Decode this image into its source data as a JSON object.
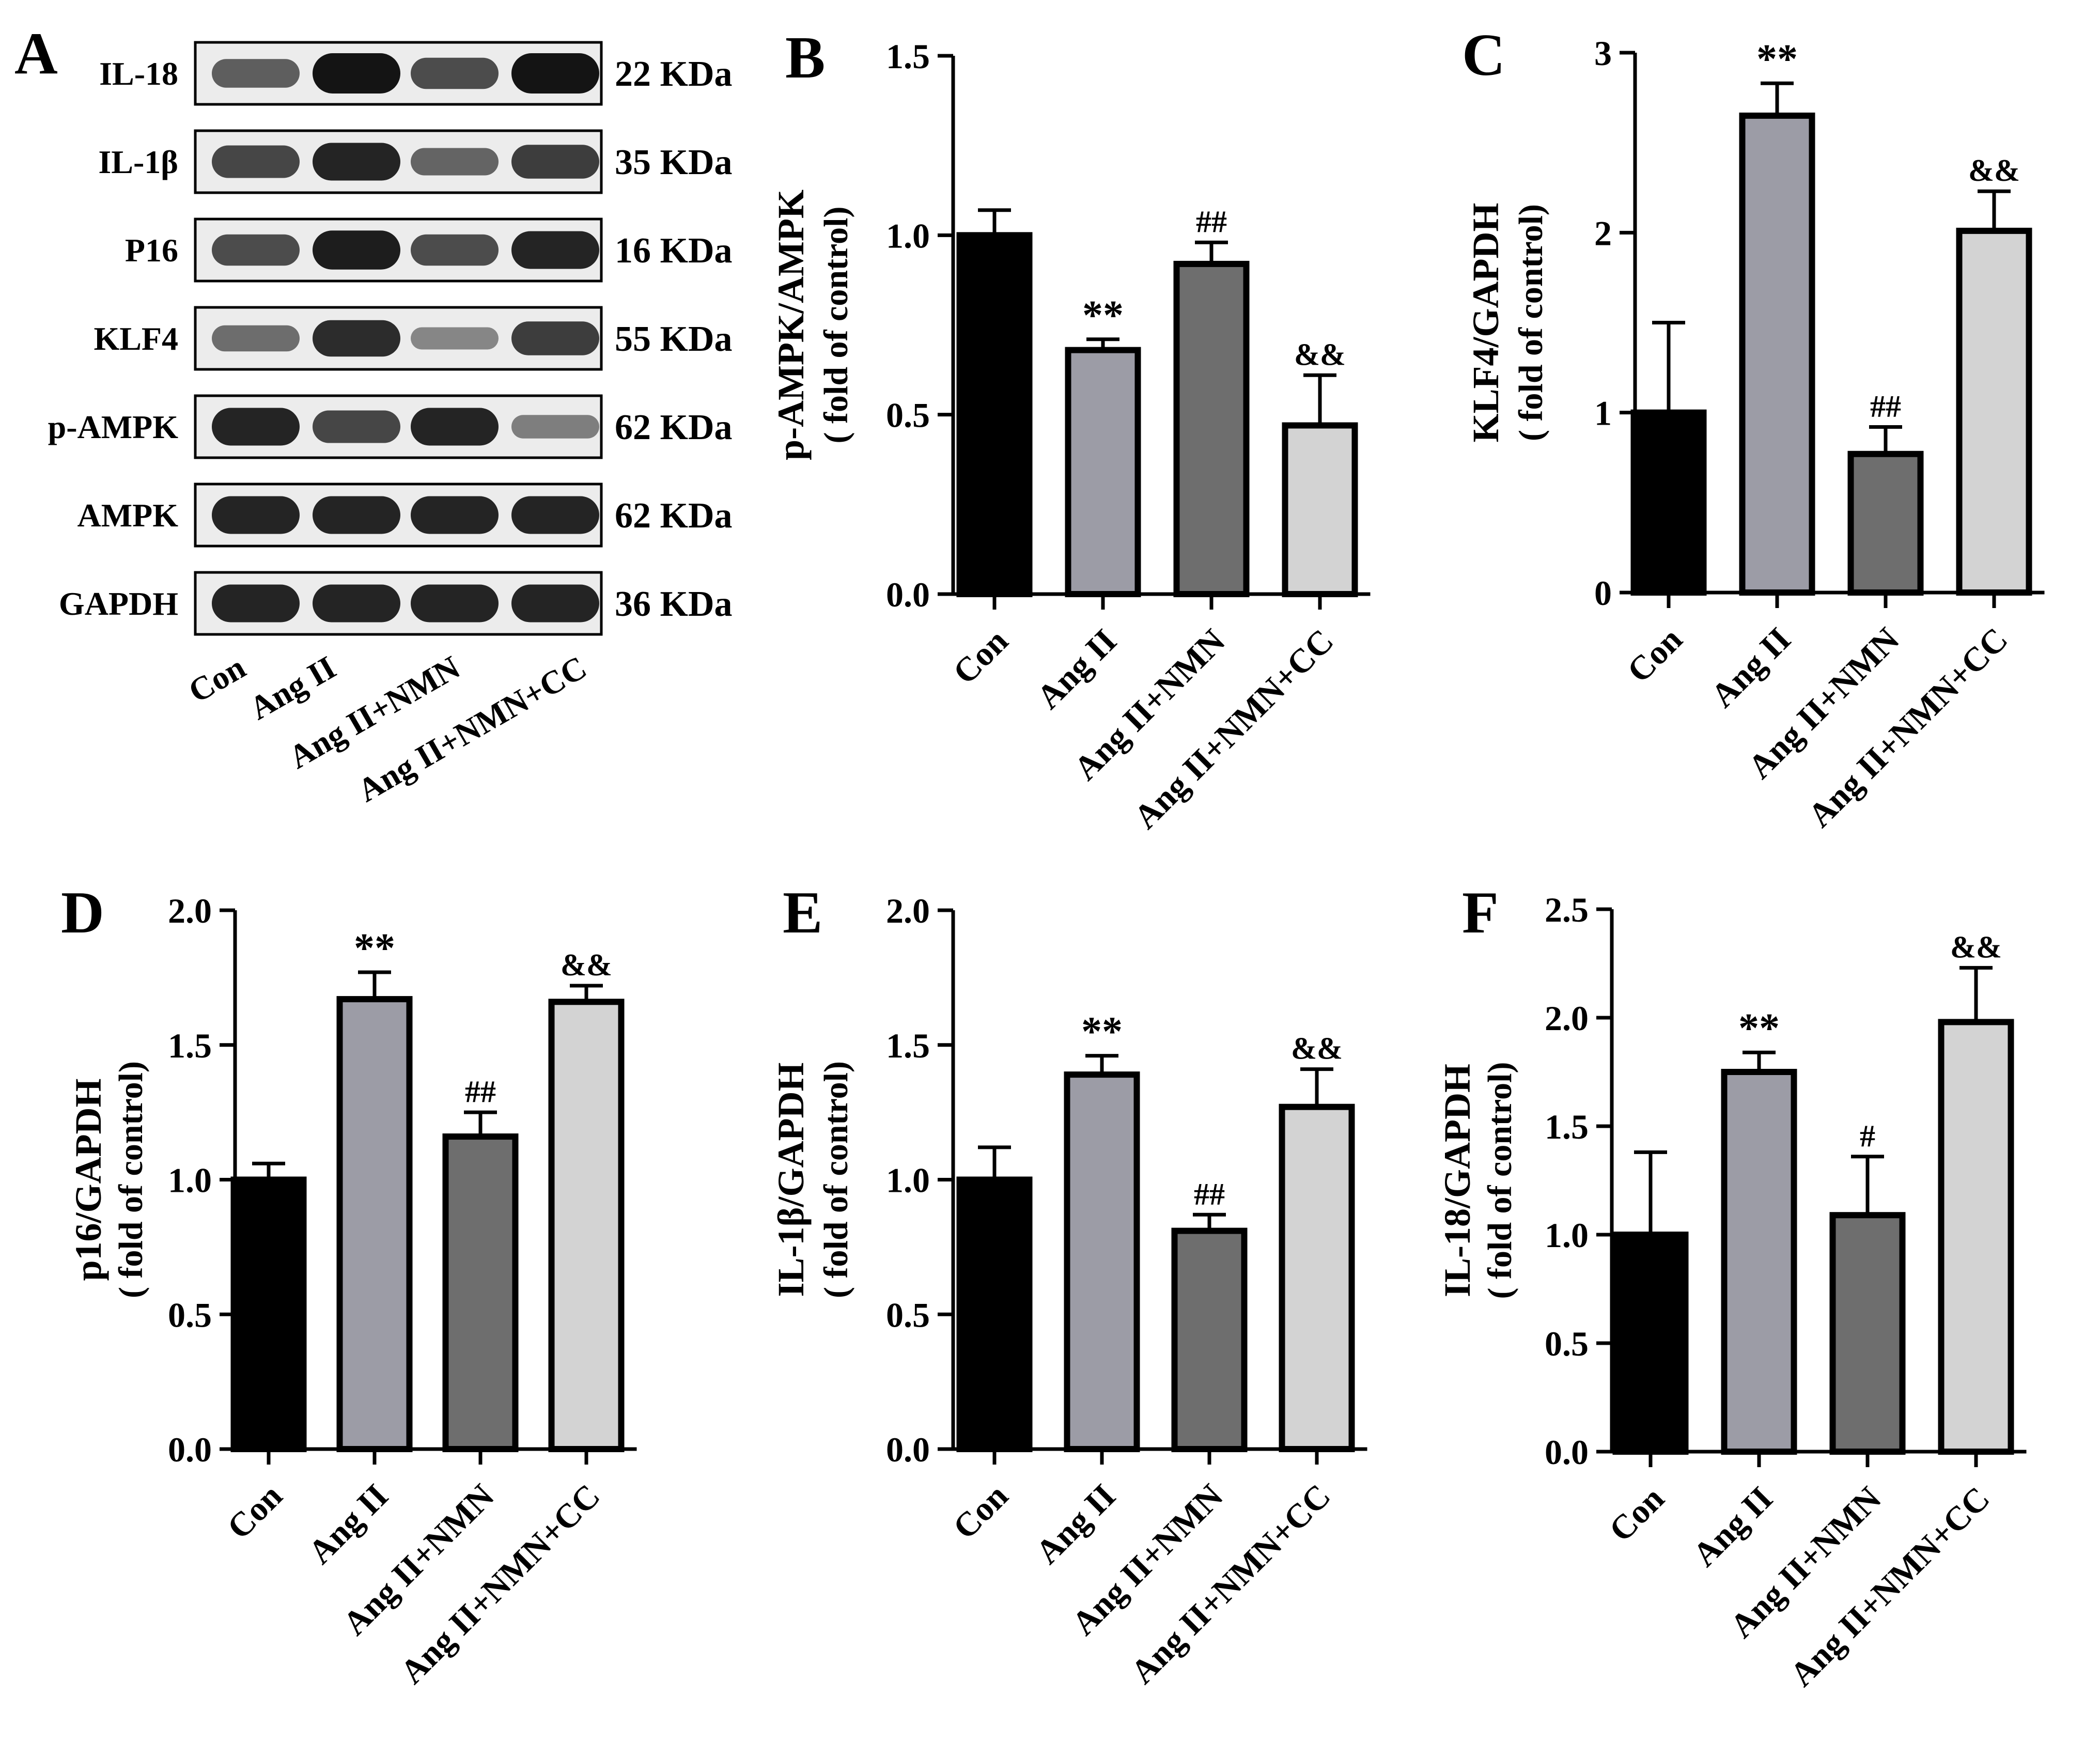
{
  "colors": {
    "bar_fills": [
      "#000000",
      "#9c9ca6",
      "#6e6e6e",
      "#d3d3d3"
    ],
    "outline": "#000000",
    "blot_background": "#ececec",
    "band": "#141414"
  },
  "blot": {
    "panel_label": "A",
    "rows": [
      {
        "protein": "IL-18",
        "size": "22 KDa",
        "intensity": [
          0.55,
          1.0,
          0.65,
          1.0
        ]
      },
      {
        "protein": "IL-1β",
        "size": "35 KDa",
        "intensity": [
          0.7,
          0.9,
          0.5,
          0.75
        ]
      },
      {
        "protein": "P16",
        "size": "16 KDa",
        "intensity": [
          0.65,
          0.95,
          0.65,
          0.9
        ]
      },
      {
        "protein": "KLF4",
        "size": "55 KDa",
        "intensity": [
          0.45,
          0.85,
          0.3,
          0.75
        ]
      },
      {
        "protein": "p-AMPK",
        "size": "62 KDa",
        "intensity": [
          0.9,
          0.7,
          0.9,
          0.35
        ]
      },
      {
        "protein": "AMPK",
        "size": "62 KDa",
        "intensity": [
          0.9,
          0.9,
          0.9,
          0.9
        ]
      },
      {
        "protein": "GAPDH",
        "size": "36 KDa",
        "intensity": [
          0.9,
          0.9,
          0.9,
          0.9
        ]
      }
    ],
    "lanes": [
      "Con",
      "Ang II",
      "Ang II+NMN",
      "Ang II+NMN+CC"
    ]
  },
  "chart_data": [
    {
      "panel": "B",
      "type": "bar",
      "title": "",
      "categories": [
        "Con",
        "Ang II",
        "Ang II+NMN",
        "Ang II+NMN+CC"
      ],
      "values": [
        1.0,
        0.68,
        0.92,
        0.47
      ],
      "errors": [
        0.07,
        0.03,
        0.06,
        0.14
      ],
      "annotations": [
        "",
        "**",
        "##",
        "&&"
      ],
      "ylabel": "p-AMPK/AMPK",
      "ylabel2": "( fold of control)",
      "ylim": [
        0,
        1.5
      ],
      "yticks": [
        0.0,
        0.5,
        1.0,
        1.5
      ],
      "ytick_labels": [
        "0.0",
        "0.5",
        "1.0",
        "1.5"
      ]
    },
    {
      "panel": "C",
      "type": "bar",
      "title": "",
      "categories": [
        "Con",
        "Ang II",
        "Ang II+NMN",
        "Ang II+NMN+CC"
      ],
      "values": [
        1.0,
        2.65,
        0.77,
        2.01
      ],
      "errors": [
        0.5,
        0.18,
        0.15,
        0.22
      ],
      "annotations": [
        "",
        "**",
        "##",
        "&&"
      ],
      "ylabel": "KLF4/GAPDH",
      "ylabel2": "( fold of control)",
      "ylim": [
        0,
        3
      ],
      "yticks": [
        0,
        1,
        2,
        3
      ],
      "ytick_labels": [
        "0",
        "1",
        "2",
        "3"
      ]
    },
    {
      "panel": "D",
      "type": "bar",
      "title": "",
      "categories": [
        "Con",
        "Ang II",
        "Ang II+NMN",
        "Ang II+NMN+CC"
      ],
      "values": [
        1.0,
        1.67,
        1.16,
        1.66
      ],
      "errors": [
        0.06,
        0.1,
        0.09,
        0.06
      ],
      "annotations": [
        "",
        "**",
        "##",
        "&&"
      ],
      "ylabel": "p16/GAPDH",
      "ylabel2": "( fold of control)",
      "ylim": [
        0,
        2.0
      ],
      "yticks": [
        0.0,
        0.5,
        1.0,
        1.5,
        2.0
      ],
      "ytick_labels": [
        "0.0",
        "0.5",
        "1.0",
        "1.5",
        "2.0"
      ]
    },
    {
      "panel": "E",
      "type": "bar",
      "title": "",
      "categories": [
        "Con",
        "Ang II",
        "Ang II+NMN",
        "Ang II+NMN+CC"
      ],
      "values": [
        1.0,
        1.39,
        0.81,
        1.27
      ],
      "errors": [
        0.12,
        0.07,
        0.06,
        0.14
      ],
      "annotations": [
        "",
        "**",
        "##",
        "&&"
      ],
      "ylabel": "IL-1β/GAPDH",
      "ylabel2": "( fold of control)",
      "ylim": [
        0,
        2.0
      ],
      "yticks": [
        0.0,
        0.5,
        1.0,
        1.5,
        2.0
      ],
      "ytick_labels": [
        "0.0",
        "0.5",
        "1.0",
        "1.5",
        "2.0"
      ]
    },
    {
      "panel": "F",
      "type": "bar",
      "title": "",
      "categories": [
        "Con",
        "Ang II",
        "Ang II+NMN",
        "Ang II+NMN+CC"
      ],
      "values": [
        1.0,
        1.75,
        1.09,
        1.98
      ],
      "errors": [
        0.38,
        0.09,
        0.27,
        0.25
      ],
      "annotations": [
        "",
        "**",
        "#",
        "&&"
      ],
      "ylabel": "IL-18/GAPDH",
      "ylabel2": "( fold of control)",
      "ylim": [
        0,
        2.5
      ],
      "yticks": [
        0.0,
        0.5,
        1.0,
        1.5,
        2.0,
        2.5
      ],
      "ytick_labels": [
        "0.0",
        "0.5",
        "1.0",
        "1.5",
        "2.0",
        "2.5"
      ]
    }
  ]
}
